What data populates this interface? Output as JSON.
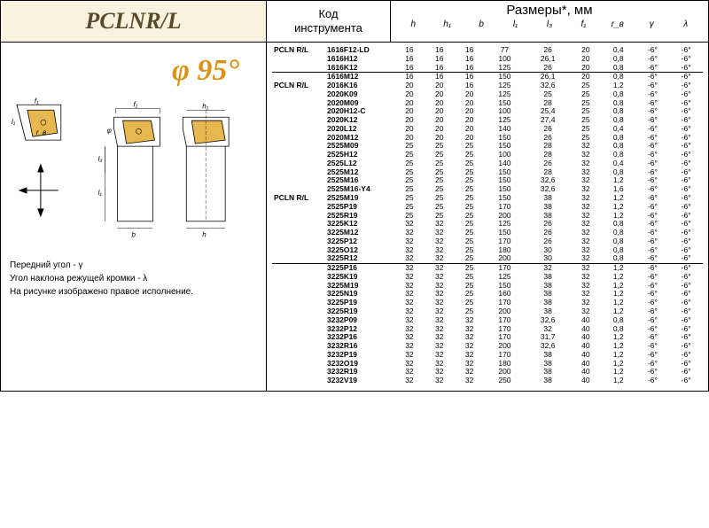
{
  "title": "PCLNR/L",
  "code_label_line1": "Код",
  "code_label_line2": "инструмента",
  "dims_label": "Размеры*, мм",
  "angle": "φ 95°",
  "diagram_labels": {
    "f1a": "f₁",
    "rb": "r_в",
    "l1a": "l₁",
    "f1b": "f₁",
    "h1": "h₁",
    "phi": "φ",
    "l3": "l₃",
    "l1b": "l₁",
    "b": "b",
    "h": "h"
  },
  "notes": [
    "Передний угол - γ",
    "Угол наклона режущей кромки - λ",
    "На рисунке изображено правое исполнение."
  ],
  "columns": [
    "h",
    "h₁",
    "b",
    "l₁",
    "l₃",
    "f₁",
    "r_в",
    "γ",
    "λ"
  ],
  "groups": [
    {
      "prefix": "PCLN R/L",
      "rows": [
        [
          "1616F12-LD",
          "16",
          "16",
          "16",
          "77",
          "26",
          "20",
          "0,4",
          "-6°",
          "-6°"
        ],
        [
          "1616H12",
          "16",
          "16",
          "16",
          "100",
          "26,1",
          "20",
          "0,8",
          "-6°",
          "-6°"
        ],
        [
          "1616K12",
          "16",
          "16",
          "16",
          "125",
          "26",
          "20",
          "0,8",
          "-6°",
          "-6°"
        ]
      ]
    },
    {
      "prefix": "",
      "sep": true,
      "rows": [
        [
          "1616M12",
          "16",
          "16",
          "16",
          "150",
          "26,1",
          "20",
          "0,8",
          "-6°",
          "-6°"
        ]
      ]
    },
    {
      "prefix": "PCLN R/L",
      "sep": false,
      "rows": [
        [
          "2016K16",
          "20",
          "20",
          "16",
          "125",
          "32,6",
          "25",
          "1,2",
          "-6°",
          "-6°"
        ],
        [
          "2020K09",
          "20",
          "20",
          "20",
          "125",
          "25",
          "25",
          "0,8",
          "-6°",
          "-6°"
        ],
        [
          "2020M09",
          "20",
          "20",
          "20",
          "150",
          "28",
          "25",
          "0,8",
          "-6°",
          "-6°"
        ],
        [
          "2020H12-C",
          "20",
          "20",
          "20",
          "100",
          "25,4",
          "25",
          "0,8",
          "-6°",
          "-6°"
        ],
        [
          "2020K12",
          "20",
          "20",
          "20",
          "125",
          "27,4",
          "25",
          "0,8",
          "-6°",
          "-6°"
        ],
        [
          "2020L12",
          "20",
          "20",
          "20",
          "140",
          "26",
          "25",
          "0,4",
          "-6°",
          "-6°"
        ],
        [
          "2020M12",
          "20",
          "20",
          "20",
          "150",
          "26",
          "25",
          "0,8",
          "-6°",
          "-6°"
        ],
        [
          "2525M09",
          "25",
          "25",
          "25",
          "150",
          "28",
          "32",
          "0,8",
          "-6°",
          "-6°"
        ],
        [
          "2525H12",
          "25",
          "25",
          "25",
          "100",
          "28",
          "32",
          "0,8",
          "-6°",
          "-6°"
        ],
        [
          "2525L12",
          "25",
          "25",
          "25",
          "140",
          "26",
          "32",
          "0,4",
          "-6°",
          "-6°"
        ],
        [
          "2525M12",
          "25",
          "25",
          "25",
          "150",
          "28",
          "32",
          "0,8",
          "-6°",
          "-6°"
        ],
        [
          "2525M16",
          "25",
          "25",
          "25",
          "150",
          "32,6",
          "32",
          "1,2",
          "-6°",
          "-6°"
        ],
        [
          "2525M16-Y4",
          "25",
          "25",
          "25",
          "150",
          "32,6",
          "32",
          "1,6",
          "-6°",
          "-6°"
        ]
      ]
    },
    {
      "prefix": "PCLN R/L",
      "sep": false,
      "rows": [
        [
          "2525M19",
          "25",
          "25",
          "25",
          "150",
          "38",
          "32",
          "1,2",
          "-6°",
          "-6°"
        ],
        [
          "2525P19",
          "25",
          "25",
          "25",
          "170",
          "38",
          "32",
          "1,2",
          "-6°",
          "-6°"
        ],
        [
          "2525R19",
          "25",
          "25",
          "25",
          "200",
          "38",
          "32",
          "1,2",
          "-6°",
          "-6°"
        ],
        [
          "3225K12",
          "32",
          "32",
          "25",
          "125",
          "26",
          "32",
          "0,8",
          "-6°",
          "-6°"
        ],
        [
          "3225M12",
          "32",
          "32",
          "25",
          "150",
          "26",
          "32",
          "0,8",
          "-6°",
          "-6°"
        ],
        [
          "3225P12",
          "32",
          "32",
          "25",
          "170",
          "26",
          "32",
          "0,8",
          "-6°",
          "-6°"
        ],
        [
          "3225O12",
          "32",
          "32",
          "25",
          "180",
          "30",
          "32",
          "0,8",
          "-6°",
          "-6°"
        ],
        [
          "3225R12",
          "32",
          "32",
          "25",
          "200",
          "30",
          "32",
          "0,8",
          "-6°",
          "-6°"
        ]
      ]
    },
    {
      "prefix": "",
      "sep": true,
      "rows": [
        [
          "3225P16",
          "32",
          "32",
          "25",
          "170",
          "32",
          "32",
          "1,2",
          "-6°",
          "-6°"
        ],
        [
          "3225K19",
          "32",
          "32",
          "25",
          "125",
          "38",
          "32",
          "1,2",
          "-6°",
          "-6°"
        ],
        [
          "3225M19",
          "32",
          "32",
          "25",
          "150",
          "38",
          "32",
          "1,2",
          "-6°",
          "-6°"
        ],
        [
          "3225N19",
          "32",
          "32",
          "25",
          "160",
          "38",
          "32",
          "1,2",
          "-6°",
          "-6°"
        ],
        [
          "3225P19",
          "32",
          "32",
          "25",
          "170",
          "38",
          "32",
          "1,2",
          "-6°",
          "-6°"
        ],
        [
          "3225R19",
          "32",
          "32",
          "25",
          "200",
          "38",
          "32",
          "1,2",
          "-6°",
          "-6°"
        ],
        [
          "3232P09",
          "32",
          "32",
          "32",
          "170",
          "32,6",
          "40",
          "0,8",
          "-6°",
          "-6°"
        ],
        [
          "3232P12",
          "32",
          "32",
          "32",
          "170",
          "32",
          "40",
          "0,8",
          "-6°",
          "-6°"
        ],
        [
          "3232P16",
          "32",
          "32",
          "32",
          "170",
          "31,7",
          "40",
          "1,2",
          "-6°",
          "-6°"
        ],
        [
          "3232R16",
          "32",
          "32",
          "32",
          "200",
          "32,6",
          "40",
          "1,2",
          "-6°",
          "-6°"
        ],
        [
          "3232P19",
          "32",
          "32",
          "32",
          "170",
          "38",
          "40",
          "1,2",
          "-6°",
          "-6°"
        ],
        [
          "3232O19",
          "32",
          "32",
          "32",
          "180",
          "38",
          "40",
          "1,2",
          "-6°",
          "-6°"
        ],
        [
          "3232R19",
          "32",
          "32",
          "32",
          "200",
          "38",
          "40",
          "1,2",
          "-6°",
          "-6°"
        ],
        [
          "3232V19",
          "32",
          "32",
          "32",
          "250",
          "38",
          "40",
          "1,2",
          "-6°",
          "-6°"
        ]
      ]
    }
  ],
  "colors": {
    "title_bg": "#f8f2de",
    "title_fg": "#5a4a2a",
    "accent": "#d9931a",
    "insert_fill": "#e6b84f"
  }
}
